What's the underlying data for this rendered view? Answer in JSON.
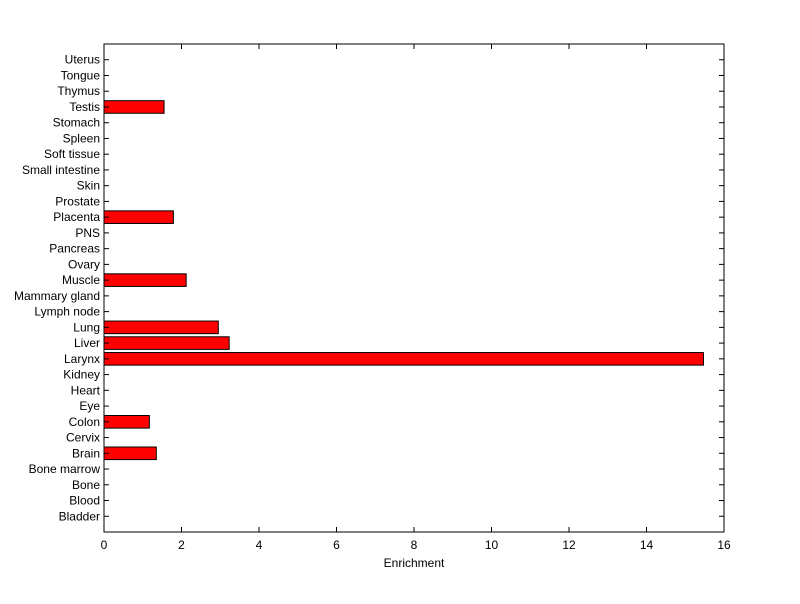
{
  "chart_data": {
    "type": "bar",
    "orientation": "horizontal",
    "title": "",
    "xlabel": "Enrichment",
    "ylabel": "",
    "xlim": [
      0,
      16
    ],
    "xticks": [
      0,
      2,
      4,
      6,
      8,
      10,
      12,
      14,
      16
    ],
    "ylim": [
      0,
      31
    ],
    "grid": false,
    "bar_color": "#ff0000",
    "edge_color": "#000000",
    "categories": [
      "Bladder",
      "Blood",
      "Bone",
      "Bone marrow",
      "Brain",
      "Cervix",
      "Colon",
      "Eye",
      "Heart",
      "Kidney",
      "Larynx",
      "Liver",
      "Lung",
      "Lymph node",
      "Mammary gland",
      "Muscle",
      "Ovary",
      "Pancreas",
      "PNS",
      "Placenta",
      "Prostate",
      "Skin",
      "Small intestine",
      "Soft tissue",
      "Spleen",
      "Stomach",
      "Testis",
      "Thymus",
      "Tongue",
      "Uterus"
    ],
    "values": [
      0,
      0,
      0,
      0,
      1.35,
      0,
      1.17,
      0,
      0,
      0,
      15.47,
      3.23,
      2.95,
      0,
      0,
      2.12,
      0,
      0,
      0,
      1.79,
      0,
      0,
      0,
      0,
      0,
      0,
      1.55,
      0,
      0,
      0
    ]
  }
}
